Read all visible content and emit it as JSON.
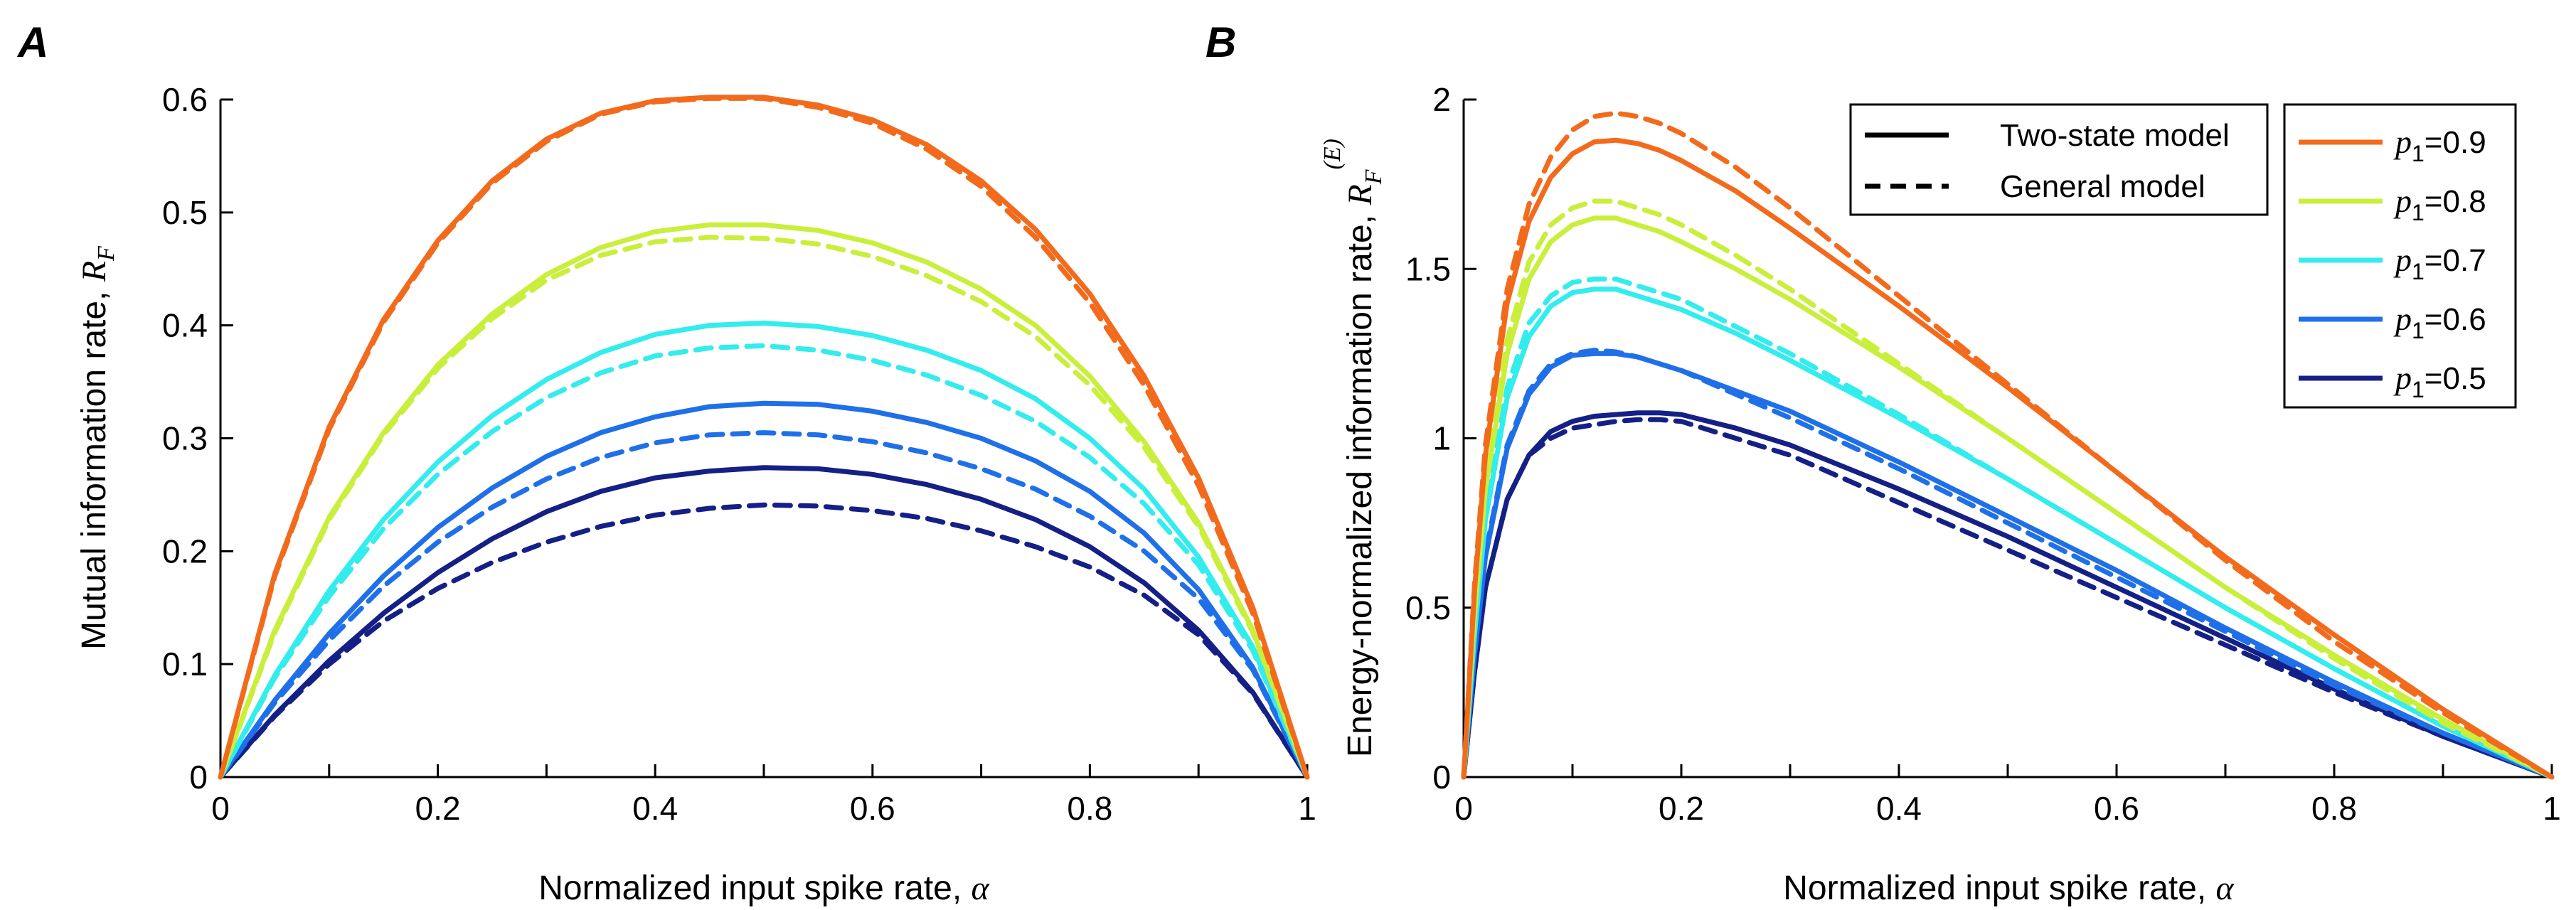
{
  "legend_styles": {
    "solid": "Two-state model",
    "dashed": "General model"
  },
  "legend_series_prefix": "p",
  "legend_series_sub": "1",
  "series_styles": [
    {
      "p1": "0.9",
      "color": "#f26b1d"
    },
    {
      "p1": "0.8",
      "color": "#c9ef3c"
    },
    {
      "p1": "0.7",
      "color": "#33eced"
    },
    {
      "p1": "0.6",
      "color": "#1f70e8"
    },
    {
      "p1": "0.5",
      "color": "#152086"
    }
  ],
  "chart_data": [
    {
      "panel": "A",
      "type": "line",
      "ylabel_text": "Mutual information rate,",
      "ylabel_math": "R",
      "ylabel_sub": "F",
      "xlabel_text": "Normalized input spike rate,",
      "xlabel_symbol": "α",
      "xlim": [
        0,
        1
      ],
      "ylim": [
        0,
        0.6
      ],
      "xticks": [
        "0",
        "0.2",
        "0.4",
        "0.6",
        "0.8",
        "1"
      ],
      "yticks": [
        "0",
        "0.1",
        "0.2",
        "0.3",
        "0.4",
        "0.5",
        "0.6"
      ],
      "x": [
        0,
        0.05,
        0.1,
        0.15,
        0.2,
        0.25,
        0.3,
        0.35,
        0.4,
        0.45,
        0.5,
        0.55,
        0.6,
        0.65,
        0.7,
        0.75,
        0.8,
        0.85,
        0.9,
        0.95,
        1
      ],
      "series": [
        {
          "name": "p1=0.9, Two-state model",
          "p1": "0.9",
          "style": "solid",
          "values": [
            0,
            0.18,
            0.31,
            0.405,
            0.475,
            0.528,
            0.565,
            0.588,
            0.599,
            0.602,
            0.602,
            0.595,
            0.582,
            0.56,
            0.528,
            0.485,
            0.428,
            0.355,
            0.265,
            0.15,
            0
          ]
        },
        {
          "name": "p1=0.9, General model",
          "p1": "0.9",
          "style": "dashed",
          "values": [
            0,
            0.178,
            0.308,
            0.403,
            0.473,
            0.526,
            0.563,
            0.587,
            0.598,
            0.601,
            0.601,
            0.593,
            0.579,
            0.556,
            0.523,
            0.478,
            0.42,
            0.347,
            0.258,
            0.145,
            0
          ]
        },
        {
          "name": "p1=0.8, Two-state model",
          "p1": "0.8",
          "style": "solid",
          "values": [
            0,
            0.13,
            0.23,
            0.305,
            0.365,
            0.41,
            0.445,
            0.469,
            0.483,
            0.489,
            0.489,
            0.484,
            0.473,
            0.456,
            0.432,
            0.4,
            0.355,
            0.297,
            0.225,
            0.13,
            0
          ]
        },
        {
          "name": "p1=0.8, General model",
          "p1": "0.8",
          "style": "dashed",
          "values": [
            0,
            0.128,
            0.228,
            0.303,
            0.362,
            0.406,
            0.44,
            0.462,
            0.474,
            0.478,
            0.477,
            0.472,
            0.461,
            0.444,
            0.421,
            0.39,
            0.347,
            0.292,
            0.222,
            0.128,
            0
          ]
        },
        {
          "name": "p1=0.7, Two-state model",
          "p1": "0.7",
          "style": "solid",
          "values": [
            0,
            0.09,
            0.165,
            0.228,
            0.279,
            0.32,
            0.352,
            0.376,
            0.392,
            0.4,
            0.402,
            0.399,
            0.391,
            0.378,
            0.36,
            0.335,
            0.3,
            0.255,
            0.195,
            0.115,
            0
          ]
        },
        {
          "name": "p1=0.7, General model",
          "p1": "0.7",
          "style": "dashed",
          "values": [
            0,
            0.088,
            0.16,
            0.22,
            0.268,
            0.306,
            0.336,
            0.358,
            0.373,
            0.38,
            0.382,
            0.378,
            0.369,
            0.356,
            0.338,
            0.315,
            0.283,
            0.242,
            0.188,
            0.112,
            0
          ]
        },
        {
          "name": "p1=0.6, Two-state model",
          "p1": "0.6",
          "style": "solid",
          "values": [
            0,
            0.068,
            0.127,
            0.178,
            0.221,
            0.256,
            0.284,
            0.305,
            0.319,
            0.328,
            0.331,
            0.33,
            0.324,
            0.314,
            0.3,
            0.28,
            0.253,
            0.216,
            0.166,
            0.097,
            0
          ]
        },
        {
          "name": "p1=0.6, General model",
          "p1": "0.6",
          "style": "dashed",
          "values": [
            0,
            0.066,
            0.121,
            0.169,
            0.208,
            0.239,
            0.264,
            0.283,
            0.296,
            0.303,
            0.305,
            0.303,
            0.297,
            0.287,
            0.273,
            0.255,
            0.231,
            0.2,
            0.158,
            0.095,
            0
          ]
        },
        {
          "name": "p1=0.5, Two-state model",
          "p1": "0.5",
          "style": "solid",
          "values": [
            0,
            0.055,
            0.103,
            0.145,
            0.181,
            0.211,
            0.235,
            0.253,
            0.265,
            0.271,
            0.274,
            0.273,
            0.268,
            0.259,
            0.246,
            0.228,
            0.204,
            0.172,
            0.13,
            0.075,
            0
          ]
        },
        {
          "name": "p1=0.5, General model",
          "p1": "0.5",
          "style": "dashed",
          "values": [
            0,
            0.054,
            0.1,
            0.138,
            0.167,
            0.19,
            0.208,
            0.222,
            0.232,
            0.238,
            0.241,
            0.24,
            0.236,
            0.229,
            0.218,
            0.204,
            0.186,
            0.161,
            0.126,
            0.074,
            0
          ]
        }
      ]
    },
    {
      "panel": "B",
      "type": "line",
      "ylabel_text": "Energy-normalized information rate,",
      "ylabel_math": "R",
      "ylabel_sub": "F",
      "ylabel_sup": "(E)",
      "xlabel_text": "Normalized input spike rate,",
      "xlabel_symbol": "α",
      "xlim": [
        0,
        1
      ],
      "ylim": [
        0,
        2
      ],
      "xticks": [
        "0",
        "0.2",
        "0.4",
        "0.6",
        "0.8",
        "1"
      ],
      "yticks": [
        "0",
        "0.5",
        "1",
        "1.5",
        "2"
      ],
      "x": [
        0,
        0.01,
        0.02,
        0.04,
        0.06,
        0.08,
        0.1,
        0.12,
        0.14,
        0.16,
        0.18,
        0.2,
        0.25,
        0.3,
        0.4,
        0.5,
        0.6,
        0.7,
        0.8,
        0.9,
        1
      ],
      "series": [
        {
          "name": "p1=0.9, Two-state model",
          "p1": "0.9",
          "style": "solid",
          "values": [
            0,
            0.55,
            0.95,
            1.4,
            1.64,
            1.77,
            1.84,
            1.875,
            1.88,
            1.87,
            1.85,
            1.82,
            1.73,
            1.62,
            1.39,
            1.15,
            0.9,
            0.65,
            0.42,
            0.2,
            0
          ]
        },
        {
          "name": "p1=0.9, General model",
          "p1": "0.9",
          "style": "dashed",
          "values": [
            0,
            0.57,
            0.98,
            1.44,
            1.69,
            1.83,
            1.91,
            1.95,
            1.96,
            1.95,
            1.93,
            1.9,
            1.8,
            1.68,
            1.42,
            1.16,
            0.9,
            0.64,
            0.4,
            0.19,
            0
          ]
        },
        {
          "name": "p1=0.8, Two-state model",
          "p1": "0.8",
          "style": "solid",
          "values": [
            0,
            0.48,
            0.85,
            1.25,
            1.47,
            1.58,
            1.63,
            1.65,
            1.65,
            1.63,
            1.61,
            1.58,
            1.5,
            1.41,
            1.21,
            1.0,
            0.78,
            0.56,
            0.36,
            0.17,
            0
          ]
        },
        {
          "name": "p1=0.8, General model",
          "p1": "0.8",
          "style": "dashed",
          "values": [
            0,
            0.5,
            0.88,
            1.29,
            1.52,
            1.63,
            1.68,
            1.7,
            1.7,
            1.68,
            1.66,
            1.63,
            1.54,
            1.44,
            1.22,
            1.0,
            0.78,
            0.56,
            0.35,
            0.16,
            0
          ]
        },
        {
          "name": "p1=0.7, Two-state model",
          "p1": "0.7",
          "style": "solid",
          "values": [
            0,
            0.42,
            0.76,
            1.12,
            1.3,
            1.39,
            1.43,
            1.44,
            1.44,
            1.42,
            1.4,
            1.38,
            1.31,
            1.23,
            1.06,
            0.88,
            0.69,
            0.5,
            0.32,
            0.15,
            0
          ]
        },
        {
          "name": "p1=0.7, General model",
          "p1": "0.7",
          "style": "dashed",
          "values": [
            0,
            0.43,
            0.78,
            1.15,
            1.34,
            1.42,
            1.46,
            1.47,
            1.47,
            1.45,
            1.43,
            1.41,
            1.33,
            1.25,
            1.07,
            0.88,
            0.69,
            0.5,
            0.32,
            0.15,
            0
          ]
        },
        {
          "name": "p1=0.6, Two-state model",
          "p1": "0.6",
          "style": "solid",
          "values": [
            0,
            0.36,
            0.65,
            0.97,
            1.13,
            1.21,
            1.245,
            1.25,
            1.25,
            1.24,
            1.22,
            1.2,
            1.14,
            1.08,
            0.93,
            0.77,
            0.61,
            0.44,
            0.28,
            0.13,
            0
          ]
        },
        {
          "name": "p1=0.6, General model",
          "p1": "0.6",
          "style": "dashed",
          "values": [
            0,
            0.36,
            0.66,
            0.98,
            1.14,
            1.22,
            1.25,
            1.26,
            1.255,
            1.24,
            1.22,
            1.2,
            1.13,
            1.06,
            0.91,
            0.75,
            0.59,
            0.43,
            0.27,
            0.13,
            0
          ]
        },
        {
          "name": "p1=0.5, Two-state model",
          "p1": "0.5",
          "style": "solid",
          "values": [
            0,
            0.31,
            0.56,
            0.82,
            0.95,
            1.02,
            1.05,
            1.065,
            1.07,
            1.075,
            1.075,
            1.07,
            1.03,
            0.98,
            0.85,
            0.71,
            0.56,
            0.41,
            0.26,
            0.12,
            0
          ]
        },
        {
          "name": "p1=0.5, General model",
          "p1": "0.5",
          "style": "dashed",
          "values": [
            0,
            0.31,
            0.56,
            0.82,
            0.95,
            1.0,
            1.03,
            1.04,
            1.05,
            1.055,
            1.055,
            1.05,
            1.0,
            0.95,
            0.81,
            0.67,
            0.53,
            0.39,
            0.25,
            0.12,
            0
          ]
        }
      ]
    }
  ]
}
